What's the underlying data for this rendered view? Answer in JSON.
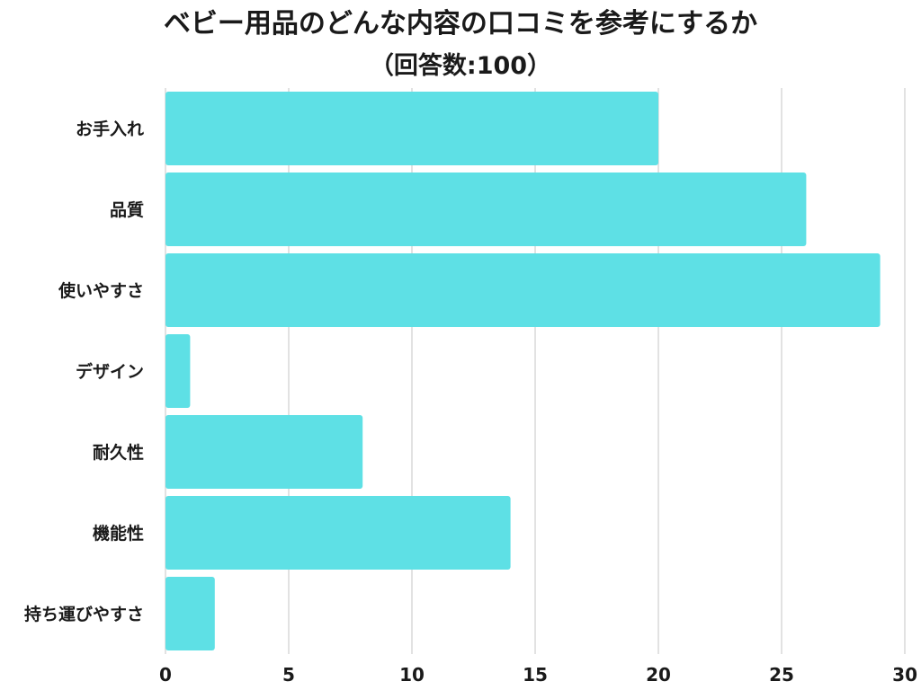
{
  "chart_data": {
    "type": "bar",
    "orientation": "horizontal",
    "title": "ベビー用品のどんな内容の口コミを参考にするか",
    "subtitle": "（回答数:100）",
    "categories": [
      "お手入れ",
      "品質",
      "使いやすさ",
      "デザイン",
      "耐久性",
      "機能性",
      "持ち運びやすさ"
    ],
    "values": [
      20,
      26,
      29,
      1,
      8,
      14,
      2
    ],
    "xlim": [
      0,
      30
    ],
    "xticks": [
      0,
      5,
      10,
      15,
      20,
      25,
      30
    ],
    "grid": true,
    "bar_color": "#5ee0e5",
    "grid_color": "#d9d9d9",
    "xlabel": "",
    "ylabel": ""
  }
}
